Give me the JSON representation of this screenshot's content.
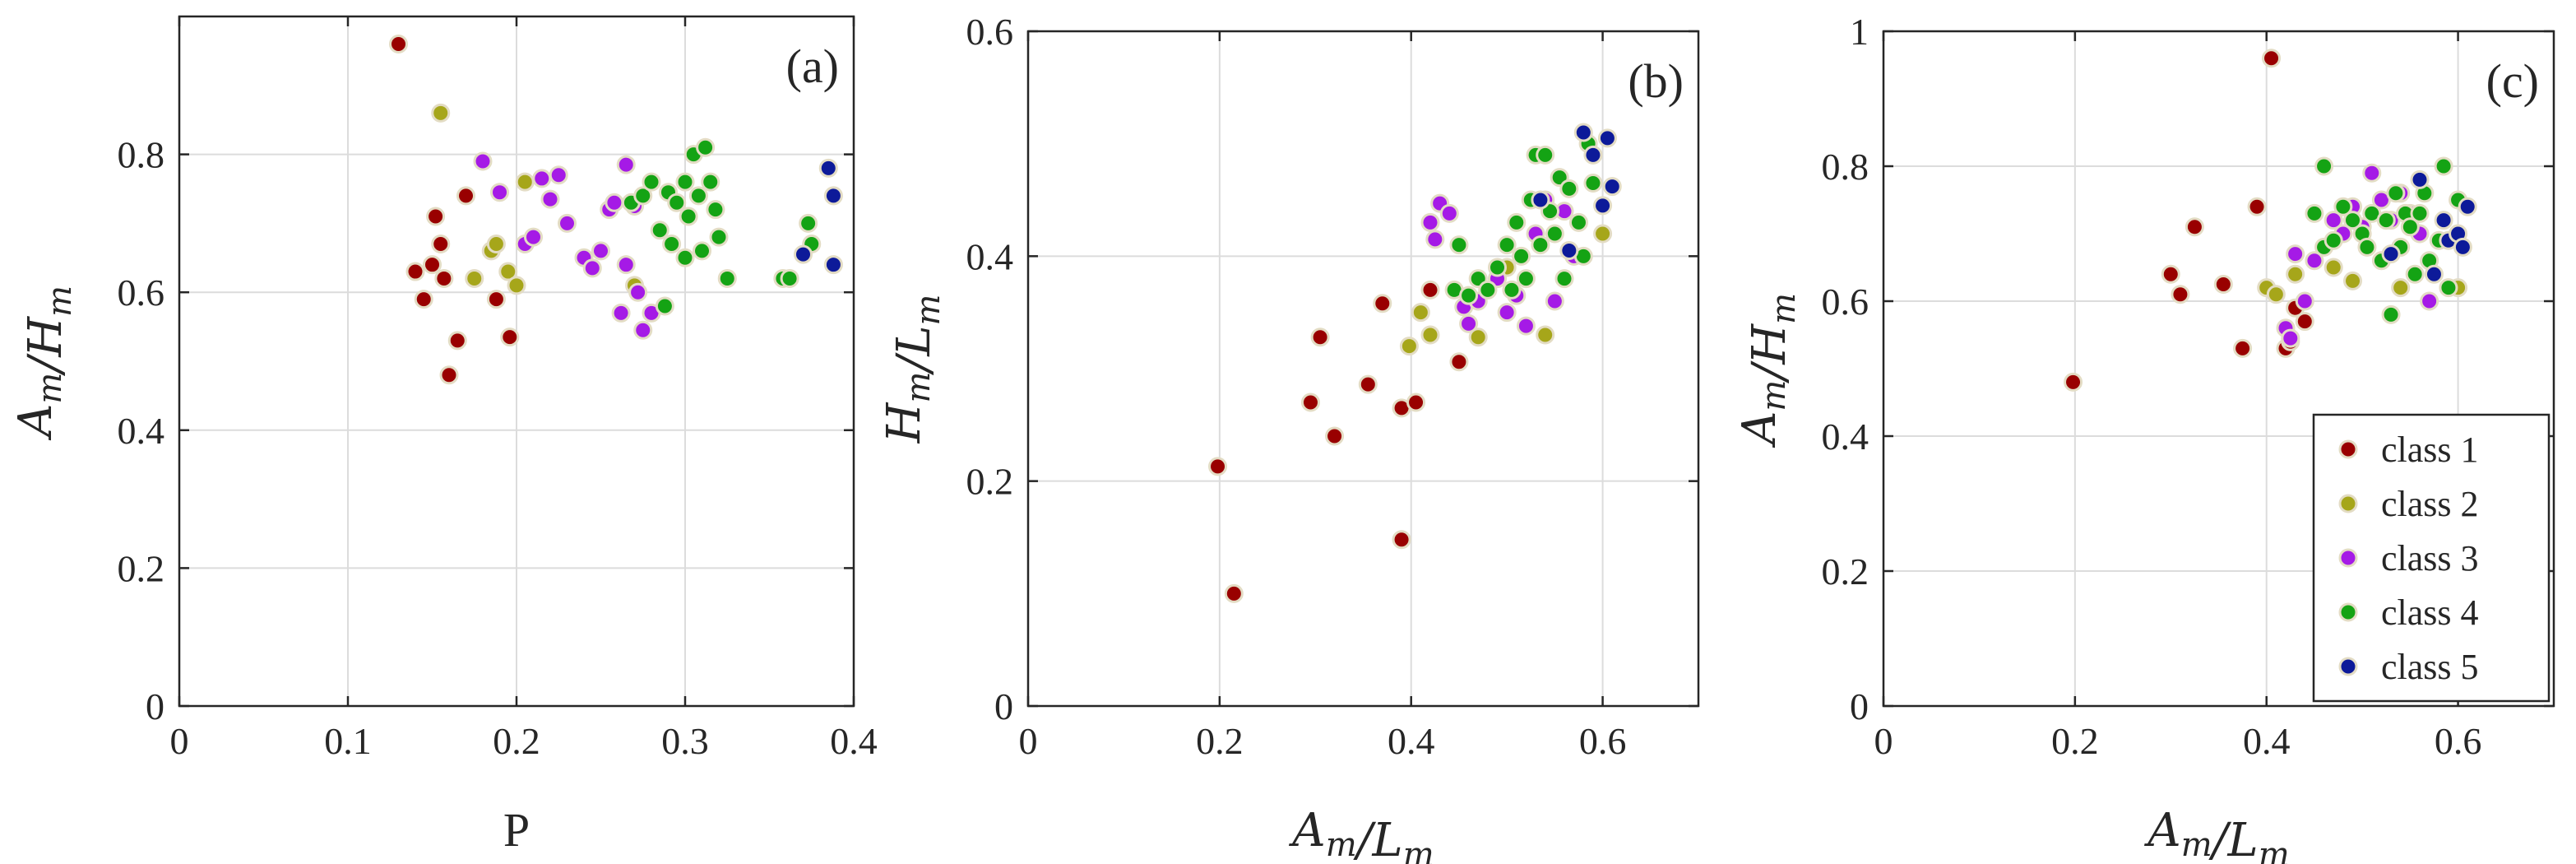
{
  "colors": {
    "class_1": "#990000",
    "class_2": "#a6a61a",
    "class_3": "#a51ae6",
    "class_4": "#14a314",
    "class_5": "#0d1a99",
    "marker_edge": "#e3dcc4"
  },
  "legend": {
    "panel": "c",
    "placement": "bottom-right",
    "entries": [
      "class 1",
      "class 2",
      "class 3",
      "class 4",
      "class 5"
    ]
  },
  "chart_data": [
    {
      "id": "a",
      "type": "scatter",
      "panel_label": "(a)",
      "xlabel": "P",
      "ylabel": "A_m/H_m",
      "xlim": [
        0,
        0.4
      ],
      "ylim": [
        0,
        1.0
      ],
      "xticks": [
        0,
        0.1,
        0.2,
        0.3,
        0.4
      ],
      "xtick_labels": [
        "0",
        "0.1",
        "0.2",
        "0.3",
        "0.4"
      ],
      "yticks": [
        0,
        0.2,
        0.4,
        0.6,
        0.8
      ],
      "ytick_labels": [
        "0",
        "0.2",
        "0.4",
        "0.6",
        "0.8"
      ],
      "grid": true,
      "series": [
        {
          "name": "class 1",
          "points": [
            [
              0.13,
              0.96
            ],
            [
              0.14,
              0.63
            ],
            [
              0.145,
              0.59
            ],
            [
              0.15,
              0.64
            ],
            [
              0.152,
              0.71
            ],
            [
              0.155,
              0.67
            ],
            [
              0.157,
              0.62
            ],
            [
              0.16,
              0.48
            ],
            [
              0.165,
              0.53
            ],
            [
              0.17,
              0.74
            ],
            [
              0.188,
              0.59
            ],
            [
              0.196,
              0.535
            ]
          ]
        },
        {
          "name": "class 2",
          "points": [
            [
              0.155,
              0.86
            ],
            [
              0.175,
              0.62
            ],
            [
              0.185,
              0.66
            ],
            [
              0.188,
              0.67
            ],
            [
              0.195,
              0.63
            ],
            [
              0.2,
              0.61
            ],
            [
              0.205,
              0.76
            ],
            [
              0.27,
              0.61
            ]
          ]
        },
        {
          "name": "class 3",
          "points": [
            [
              0.18,
              0.79
            ],
            [
              0.19,
              0.745
            ],
            [
              0.205,
              0.67
            ],
            [
              0.21,
              0.68
            ],
            [
              0.215,
              0.765
            ],
            [
              0.22,
              0.735
            ],
            [
              0.225,
              0.77
            ],
            [
              0.23,
              0.7
            ],
            [
              0.24,
              0.65
            ],
            [
              0.245,
              0.635
            ],
            [
              0.25,
              0.66
            ],
            [
              0.255,
              0.72
            ],
            [
              0.258,
              0.73
            ],
            [
              0.262,
              0.57
            ],
            [
              0.265,
              0.785
            ],
            [
              0.265,
              0.64
            ],
            [
              0.27,
              0.725
            ],
            [
              0.272,
              0.6
            ],
            [
              0.275,
              0.545
            ],
            [
              0.28,
              0.57
            ]
          ]
        },
        {
          "name": "class 4",
          "points": [
            [
              0.268,
              0.73
            ],
            [
              0.275,
              0.74
            ],
            [
              0.28,
              0.76
            ],
            [
              0.285,
              0.69
            ],
            [
              0.29,
              0.745
            ],
            [
              0.292,
              0.67
            ],
            [
              0.295,
              0.73
            ],
            [
              0.3,
              0.76
            ],
            [
              0.302,
              0.71
            ],
            [
              0.305,
              0.8
            ],
            [
              0.308,
              0.74
            ],
            [
              0.31,
              0.66
            ],
            [
              0.312,
              0.81
            ],
            [
              0.315,
              0.76
            ],
            [
              0.318,
              0.72
            ],
            [
              0.32,
              0.68
            ],
            [
              0.325,
              0.62
            ],
            [
              0.288,
              0.58
            ],
            [
              0.3,
              0.65
            ],
            [
              0.358,
              0.62
            ],
            [
              0.362,
              0.62
            ],
            [
              0.373,
              0.7
            ],
            [
              0.375,
              0.67
            ]
          ]
        },
        {
          "name": "class 5",
          "points": [
            [
              0.37,
              0.655
            ],
            [
              0.385,
              0.78
            ],
            [
              0.388,
              0.74
            ],
            [
              0.388,
              0.64
            ]
          ]
        }
      ]
    },
    {
      "id": "b",
      "type": "scatter",
      "panel_label": "(b)",
      "xlabel": "A_m/L_m",
      "ylabel": "H_m/L_m",
      "xlim": [
        0,
        0.7
      ],
      "ylim": [
        0,
        0.6
      ],
      "xticks": [
        0,
        0.2,
        0.4,
        0.6
      ],
      "xtick_labels": [
        "0",
        "0.2",
        "0.4",
        "0.6"
      ],
      "yticks": [
        0,
        0.2,
        0.4,
        0.6
      ],
      "ytick_labels": [
        "0",
        "0.2",
        "0.4",
        "0.6"
      ],
      "grid": true,
      "series": [
        {
          "name": "class 1",
          "points": [
            [
              0.198,
              0.213
            ],
            [
              0.215,
              0.1
            ],
            [
              0.295,
              0.27
            ],
            [
              0.305,
              0.328
            ],
            [
              0.32,
              0.24
            ],
            [
              0.355,
              0.286
            ],
            [
              0.37,
              0.358
            ],
            [
              0.39,
              0.265
            ],
            [
              0.39,
              0.148
            ],
            [
              0.405,
              0.27
            ],
            [
              0.42,
              0.37
            ],
            [
              0.45,
              0.306
            ]
          ]
        },
        {
          "name": "class 2",
          "points": [
            [
              0.398,
              0.32
            ],
            [
              0.41,
              0.35
            ],
            [
              0.42,
              0.33
            ],
            [
              0.47,
              0.328
            ],
            [
              0.5,
              0.39
            ],
            [
              0.54,
              0.33
            ],
            [
              0.6,
              0.42
            ]
          ]
        },
        {
          "name": "class 3",
          "points": [
            [
              0.42,
              0.43
            ],
            [
              0.425,
              0.415
            ],
            [
              0.43,
              0.447
            ],
            [
              0.44,
              0.438
            ],
            [
              0.455,
              0.355
            ],
            [
              0.46,
              0.34
            ],
            [
              0.47,
              0.36
            ],
            [
              0.48,
              0.37
            ],
            [
              0.49,
              0.38
            ],
            [
              0.5,
              0.35
            ],
            [
              0.51,
              0.365
            ],
            [
              0.52,
              0.338
            ],
            [
              0.53,
              0.42
            ],
            [
              0.54,
              0.45
            ],
            [
              0.55,
              0.36
            ],
            [
              0.56,
              0.44
            ],
            [
              0.57,
              0.4
            ]
          ]
        },
        {
          "name": "class 4",
          "points": [
            [
              0.445,
              0.37
            ],
            [
              0.45,
              0.41
            ],
            [
              0.46,
              0.365
            ],
            [
              0.47,
              0.38
            ],
            [
              0.48,
              0.37
            ],
            [
              0.49,
              0.39
            ],
            [
              0.5,
              0.41
            ],
            [
              0.505,
              0.37
            ],
            [
              0.51,
              0.43
            ],
            [
              0.515,
              0.4
            ],
            [
              0.52,
              0.38
            ],
            [
              0.525,
              0.45
            ],
            [
              0.53,
              0.49
            ],
            [
              0.535,
              0.41
            ],
            [
              0.54,
              0.49
            ],
            [
              0.545,
              0.44
            ],
            [
              0.55,
              0.42
            ],
            [
              0.555,
              0.47
            ],
            [
              0.56,
              0.38
            ],
            [
              0.565,
              0.46
            ],
            [
              0.575,
              0.43
            ],
            [
              0.58,
              0.4
            ],
            [
              0.585,
              0.5
            ],
            [
              0.59,
              0.465
            ]
          ]
        },
        {
          "name": "class 5",
          "points": [
            [
              0.535,
              0.45
            ],
            [
              0.565,
              0.405
            ],
            [
              0.58,
              0.51
            ],
            [
              0.59,
              0.49
            ],
            [
              0.6,
              0.445
            ],
            [
              0.605,
              0.505
            ],
            [
              0.61,
              0.462
            ]
          ]
        }
      ]
    },
    {
      "id": "c",
      "type": "scatter",
      "panel_label": "(c)",
      "xlabel": "A_m/L_m",
      "ylabel": "A_m/H_m",
      "xlim": [
        0,
        0.7
      ],
      "ylim": [
        0,
        1.0
      ],
      "xticks": [
        0,
        0.2,
        0.4,
        0.6
      ],
      "xtick_labels": [
        "0",
        "0.2",
        "0.4",
        "0.6"
      ],
      "yticks": [
        0,
        0.2,
        0.4,
        0.6,
        0.8,
        1.0
      ],
      "ytick_labels": [
        "0",
        "0.2",
        "0.4",
        "0.6",
        "0.8",
        "1"
      ],
      "grid": true,
      "series": [
        {
          "name": "class 1",
          "points": [
            [
              0.198,
              0.48
            ],
            [
              0.3,
              0.64
            ],
            [
              0.31,
              0.61
            ],
            [
              0.325,
              0.71
            ],
            [
              0.355,
              0.625
            ],
            [
              0.375,
              0.53
            ],
            [
              0.39,
              0.74
            ],
            [
              0.405,
              0.96
            ],
            [
              0.42,
              0.53
            ],
            [
              0.425,
              0.54
            ],
            [
              0.43,
              0.59
            ],
            [
              0.44,
              0.57
            ]
          ]
        },
        {
          "name": "class 2",
          "points": [
            [
              0.4,
              0.62
            ],
            [
              0.41,
              0.61
            ],
            [
              0.43,
              0.64
            ],
            [
              0.47,
              0.65
            ],
            [
              0.49,
              0.63
            ],
            [
              0.54,
              0.62
            ],
            [
              0.6,
              0.62
            ]
          ]
        },
        {
          "name": "class 3",
          "points": [
            [
              0.42,
              0.56
            ],
            [
              0.425,
              0.545
            ],
            [
              0.43,
              0.67
            ],
            [
              0.44,
              0.6
            ],
            [
              0.45,
              0.66
            ],
            [
              0.47,
              0.72
            ],
            [
              0.48,
              0.7
            ],
            [
              0.49,
              0.74
            ],
            [
              0.5,
              0.71
            ],
            [
              0.51,
              0.79
            ],
            [
              0.52,
              0.75
            ],
            [
              0.53,
              0.72
            ],
            [
              0.54,
              0.76
            ],
            [
              0.55,
              0.73
            ],
            [
              0.56,
              0.7
            ],
            [
              0.57,
              0.6
            ]
          ]
        },
        {
          "name": "class 4",
          "points": [
            [
              0.45,
              0.73
            ],
            [
              0.46,
              0.8
            ],
            [
              0.46,
              0.68
            ],
            [
              0.47,
              0.69
            ],
            [
              0.48,
              0.74
            ],
            [
              0.49,
              0.72
            ],
            [
              0.5,
              0.7
            ],
            [
              0.505,
              0.68
            ],
            [
              0.51,
              0.73
            ],
            [
              0.52,
              0.66
            ],
            [
              0.525,
              0.72
            ],
            [
              0.53,
              0.58
            ],
            [
              0.535,
              0.76
            ],
            [
              0.54,
              0.68
            ],
            [
              0.545,
              0.73
            ],
            [
              0.55,
              0.71
            ],
            [
              0.555,
              0.64
            ],
            [
              0.56,
              0.73
            ],
            [
              0.565,
              0.76
            ],
            [
              0.57,
              0.66
            ],
            [
              0.58,
              0.69
            ],
            [
              0.585,
              0.8
            ],
            [
              0.59,
              0.62
            ],
            [
              0.6,
              0.75
            ]
          ]
        },
        {
          "name": "class 5",
          "points": [
            [
              0.53,
              0.67
            ],
            [
              0.56,
              0.78
            ],
            [
              0.575,
              0.64
            ],
            [
              0.585,
              0.72
            ],
            [
              0.59,
              0.69
            ],
            [
              0.6,
              0.7
            ],
            [
              0.605,
              0.68
            ],
            [
              0.61,
              0.74
            ]
          ]
        }
      ]
    }
  ]
}
